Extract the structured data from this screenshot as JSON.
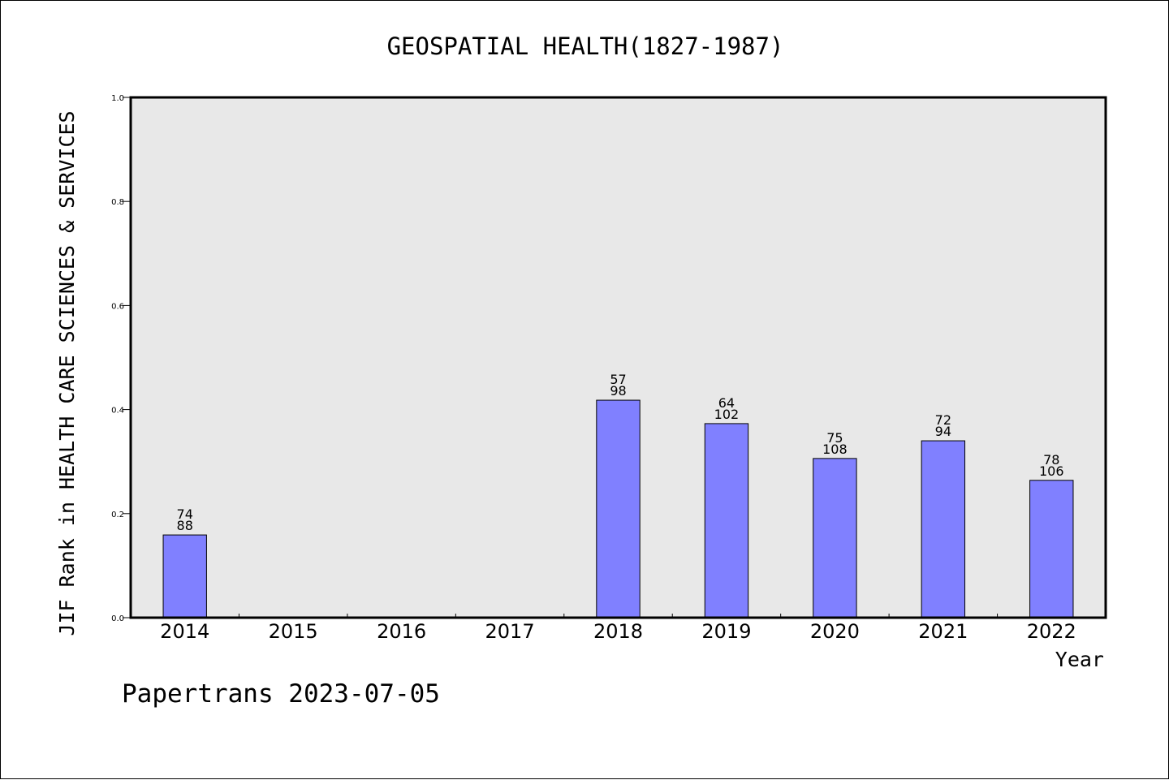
{
  "chart_data": {
    "type": "bar",
    "title": "GEOSPATIAL HEALTH(1827-1987)",
    "xlabel": "Year",
    "ylabel": "JIF Rank in HEALTH CARE SCIENCES & SERVICES",
    "ylim": [
      0,
      1.0
    ],
    "yticks": [
      "0.0",
      "0.2",
      "0.4",
      "0.6",
      "0.8",
      "1.0"
    ],
    "categories": [
      "2014",
      "2015",
      "2016",
      "2017",
      "2018",
      "2019",
      "2020",
      "2021",
      "2022"
    ],
    "values": [
      0.159,
      null,
      null,
      null,
      0.418,
      0.373,
      0.306,
      0.34,
      0.264
    ],
    "labels_top": [
      "74",
      "",
      "",
      "",
      "57",
      "64",
      "75",
      "72",
      "78"
    ],
    "labels_bottom": [
      "88",
      "",
      "",
      "",
      "98",
      "102",
      "108",
      "94",
      "106"
    ],
    "grid": false,
    "colors": {
      "bar_fill": "#8080ff",
      "plot_background": "#e8e8e8"
    }
  },
  "footer": {
    "text": "Papertrans 2023-07-05"
  }
}
